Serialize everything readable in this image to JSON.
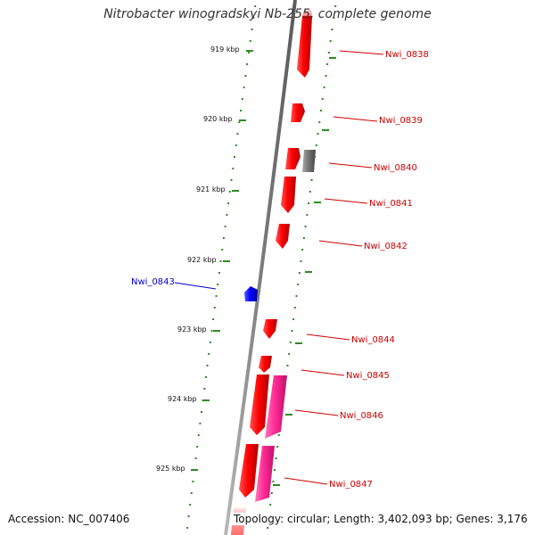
{
  "title": "Nitrobacter winogradskyi Nb-255, complete genome",
  "accession_text": "Accession: NC_007406",
  "summary_text": "Topology: circular; Length: 3,402,093 bp; Genes: 3,176",
  "colors": {
    "backbone": "#8a8a8a",
    "scale": "#2e8b22",
    "gene_plus": "#ff1a1a",
    "gene_minus": "#0000ff",
    "gene_rna": "#ff3399",
    "gene_other": "#777777",
    "label_plus": "#cc0000",
    "label_minus": "#0000cc"
  },
  "ticks": [
    "919 kbp",
    "920 kbp",
    "921 kbp",
    "922 kbp",
    "923 kbp",
    "924 kbp",
    "925 kbp"
  ],
  "genes": [
    {
      "label": "Nwi_0838"
    },
    {
      "label": "Nwi_0839"
    },
    {
      "label": "Nwi_0840"
    },
    {
      "label": "Nwi_0841"
    },
    {
      "label": "Nwi_0842"
    },
    {
      "label": "Nwi_0843"
    },
    {
      "label": "Nwi_0844"
    },
    {
      "label": "Nwi_0845"
    },
    {
      "label": "Nwi_0846"
    },
    {
      "label": "Nwi_0847"
    }
  ]
}
